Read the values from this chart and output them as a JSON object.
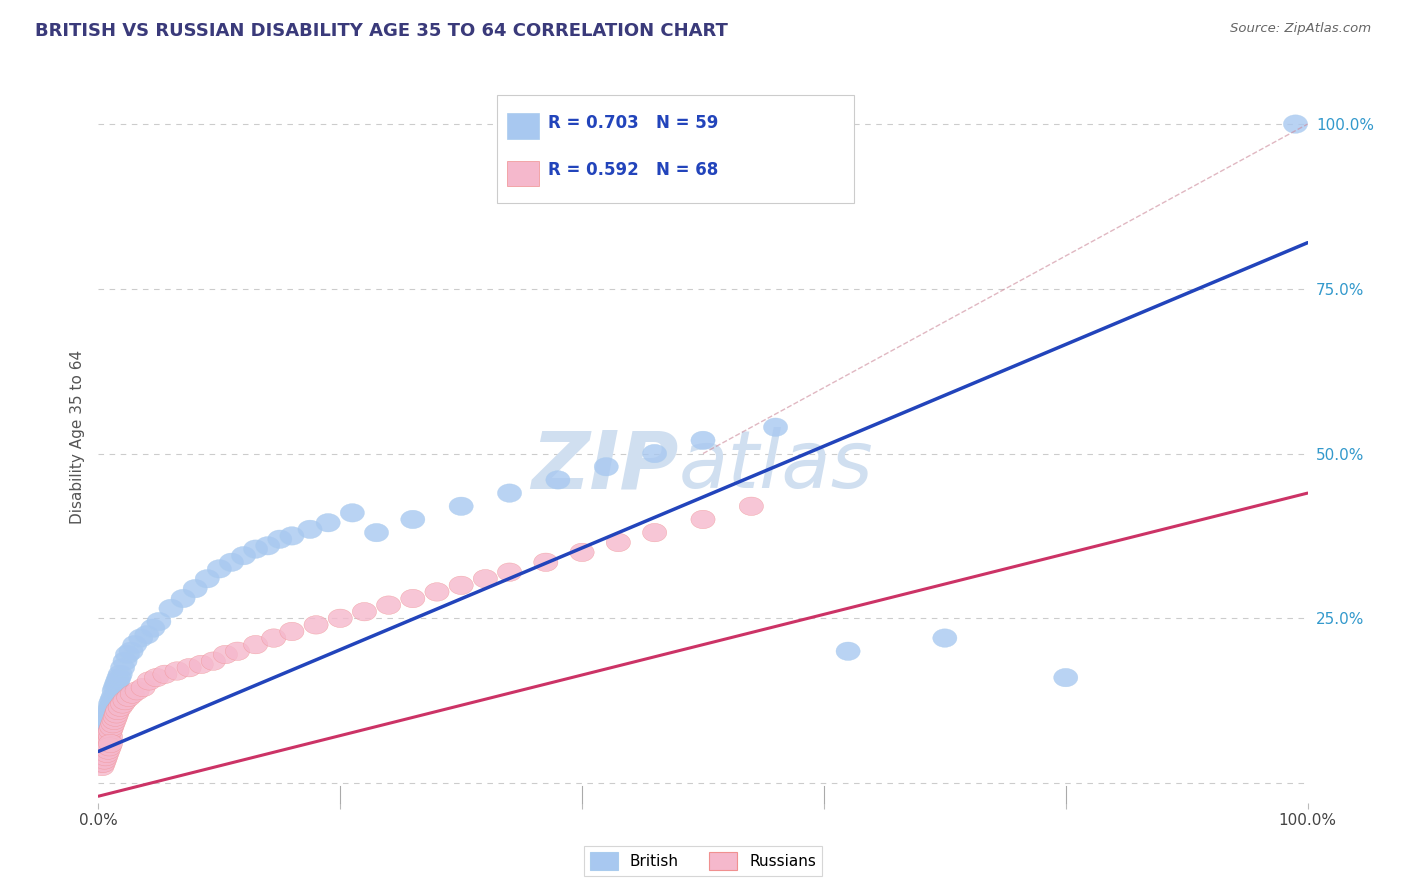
{
  "title": "BRITISH VS RUSSIAN DISABILITY AGE 35 TO 64 CORRELATION CHART",
  "source": "Source: ZipAtlas.com",
  "ylabel": "Disability Age 35 to 64",
  "xlabel": "",
  "xlim": [
    0,
    1.0
  ],
  "ylim": [
    -0.03,
    1.08
  ],
  "grid_color": "#cccccc",
  "title_color": "#3a3a7a",
  "source_color": "#666666",
  "british_color": "#a8c8f0",
  "russian_color": "#f5b8cc",
  "british_line_color": "#2244bb",
  "russian_line_color": "#cc3366",
  "rn_color": "#2244bb",
  "rn_n_color": "#cc3366",
  "british_R": 0.703,
  "british_N": 59,
  "russian_R": 0.592,
  "russian_N": 68,
  "watermark_color": "#d0dff0",
  "background_color": "#ffffff",
  "british_x": [
    0.002,
    0.003,
    0.003,
    0.004,
    0.004,
    0.005,
    0.005,
    0.006,
    0.006,
    0.007,
    0.007,
    0.008,
    0.009,
    0.01,
    0.01,
    0.011,
    0.012,
    0.013,
    0.014,
    0.015,
    0.016,
    0.017,
    0.018,
    0.02,
    0.022,
    0.024,
    0.027,
    0.03,
    0.035,
    0.04,
    0.045,
    0.05,
    0.06,
    0.07,
    0.08,
    0.09,
    0.1,
    0.11,
    0.12,
    0.13,
    0.14,
    0.15,
    0.16,
    0.175,
    0.19,
    0.21,
    0.23,
    0.26,
    0.3,
    0.34,
    0.38,
    0.42,
    0.46,
    0.5,
    0.56,
    0.62,
    0.7,
    0.8,
    0.99
  ],
  "british_y": [
    0.05,
    0.06,
    0.07,
    0.065,
    0.08,
    0.075,
    0.09,
    0.085,
    0.095,
    0.09,
    0.1,
    0.105,
    0.11,
    0.115,
    0.12,
    0.125,
    0.13,
    0.14,
    0.145,
    0.15,
    0.155,
    0.16,
    0.165,
    0.175,
    0.185,
    0.195,
    0.2,
    0.21,
    0.22,
    0.225,
    0.235,
    0.245,
    0.265,
    0.28,
    0.295,
    0.31,
    0.325,
    0.335,
    0.345,
    0.355,
    0.36,
    0.37,
    0.375,
    0.385,
    0.395,
    0.41,
    0.38,
    0.4,
    0.42,
    0.44,
    0.46,
    0.48,
    0.5,
    0.52,
    0.54,
    0.2,
    0.22,
    0.16,
    1.0
  ],
  "russian_x": [
    0.002,
    0.002,
    0.003,
    0.003,
    0.004,
    0.004,
    0.005,
    0.005,
    0.005,
    0.006,
    0.006,
    0.006,
    0.007,
    0.007,
    0.008,
    0.008,
    0.009,
    0.009,
    0.01,
    0.01,
    0.011,
    0.012,
    0.013,
    0.014,
    0.015,
    0.016,
    0.018,
    0.02,
    0.022,
    0.025,
    0.028,
    0.032,
    0.037,
    0.042,
    0.048,
    0.055,
    0.065,
    0.075,
    0.085,
    0.095,
    0.105,
    0.115,
    0.13,
    0.145,
    0.16,
    0.18,
    0.2,
    0.22,
    0.24,
    0.26,
    0.28,
    0.3,
    0.32,
    0.34,
    0.37,
    0.4,
    0.43,
    0.46,
    0.5,
    0.54,
    0.003,
    0.004,
    0.005,
    0.006,
    0.007,
    0.008,
    0.009,
    0.01
  ],
  "russian_y": [
    0.03,
    0.035,
    0.03,
    0.04,
    0.035,
    0.045,
    0.04,
    0.05,
    0.055,
    0.045,
    0.055,
    0.06,
    0.055,
    0.065,
    0.06,
    0.07,
    0.065,
    0.075,
    0.07,
    0.08,
    0.085,
    0.09,
    0.095,
    0.1,
    0.105,
    0.11,
    0.115,
    0.12,
    0.125,
    0.13,
    0.135,
    0.14,
    0.145,
    0.155,
    0.16,
    0.165,
    0.17,
    0.175,
    0.18,
    0.185,
    0.195,
    0.2,
    0.21,
    0.22,
    0.23,
    0.24,
    0.25,
    0.26,
    0.27,
    0.28,
    0.29,
    0.3,
    0.31,
    0.32,
    0.335,
    0.35,
    0.365,
    0.38,
    0.4,
    0.42,
    0.025,
    0.03,
    0.035,
    0.04,
    0.045,
    0.05,
    0.055,
    0.06
  ],
  "british_line_x": [
    0.0,
    1.0
  ],
  "british_line_y": [
    0.048,
    0.82
  ],
  "russian_line_x": [
    0.0,
    1.0
  ],
  "russian_line_y": [
    -0.02,
    0.44
  ]
}
